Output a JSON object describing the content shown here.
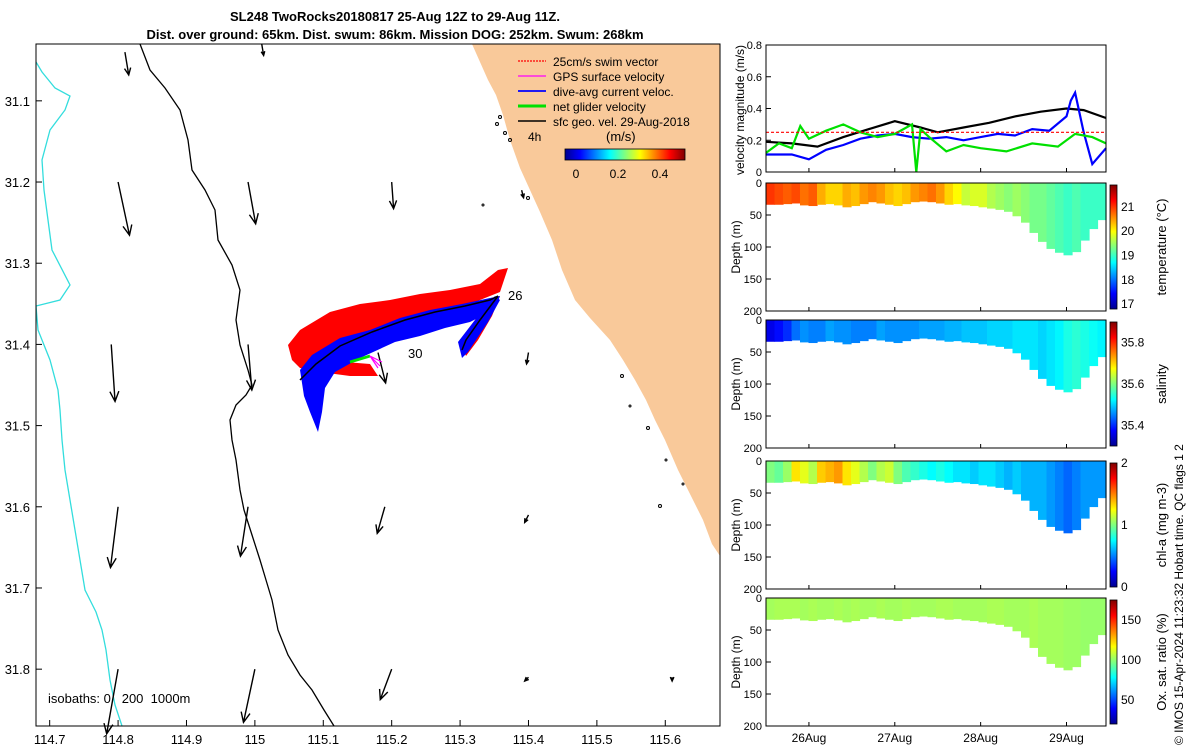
{
  "header": {
    "title_line1": "SL248 TwoRocks20180817 25-Aug 12Z to 29-Aug 11Z.",
    "title_line2": "Dist. over ground: 65km. Dist. swum: 86km. Mission DOG: 252km. Swum: 268km"
  },
  "credit": "© IMOS 15-Apr-2024 11:23:32 Hobart time. QC flags 1  2",
  "colors": {
    "land": "#f9c99a",
    "swim_vector": "#ff0000",
    "gps_velocity": "#ff00ff",
    "current": "#0000ff",
    "net_glider": "#00e000",
    "sfc_geo": "#000000",
    "isobath_0": "#000000",
    "isobath_1000": "#33dddd"
  },
  "icons": [
    "north-arrow-icon"
  ],
  "chart_data": [
    {
      "type": "map",
      "x_ticks": [
        "114.7",
        "114.8",
        "114.9",
        "115",
        "115.1",
        "115.2",
        "115.3",
        "115.4",
        "115.5",
        "115.6"
      ],
      "x_tick_values": [
        114.7,
        114.8,
        114.9,
        115.0,
        115.1,
        115.2,
        115.3,
        115.4,
        115.5,
        115.6
      ],
      "y_ticks": [
        "31.1",
        "31.2",
        "31.3",
        "31.4",
        "31.5",
        "31.6",
        "31.7",
        "31.8"
      ],
      "y_tick_values": [
        -31.1,
        -31.2,
        -31.3,
        -31.4,
        -31.5,
        -31.6,
        -31.7,
        -31.8
      ],
      "xlim": [
        114.68,
        115.68
      ],
      "ylim": [
        -31.03,
        -31.87
      ],
      "legend": {
        "placement": "top-right",
        "entries": [
          "25cm/s swim vector",
          "GPS surface velocity",
          "dive-avg current veloc.",
          "net glider velocity",
          "sfc geo. vel. 29-Aug-2018"
        ],
        "time_marker": "4h",
        "colorbar_label": "(m/s)",
        "colorbar_ticks": [
          "0",
          "0.2",
          "0.4"
        ],
        "colorbar_values": [
          0,
          0.2,
          0.4
        ]
      },
      "track_labels": [
        {
          "text": "26",
          "lon": 115.365,
          "lat": -31.34
        },
        {
          "text": "30",
          "lon": 115.225,
          "lat": -31.42
        }
      ],
      "isobath_text": "isobaths: 0   200  1000m",
      "geostrophic_vectors": [
        {
          "lon": 114.81,
          "lat": -31.04,
          "u": 0.01,
          "v": -0.06
        },
        {
          "lon": 115.01,
          "lat": -31.03,
          "u": 0.005,
          "v": -0.03
        },
        {
          "lon": 114.8,
          "lat": -31.2,
          "u": 0.03,
          "v": -0.14
        },
        {
          "lon": 114.99,
          "lat": -31.2,
          "u": 0.02,
          "v": -0.11
        },
        {
          "lon": 115.2,
          "lat": -31.2,
          "u": 0.005,
          "v": -0.07
        },
        {
          "lon": 115.39,
          "lat": -31.21,
          "u": 0.005,
          "v": -0.02
        },
        {
          "lon": 114.79,
          "lat": -31.4,
          "u": 0.01,
          "v": -0.15
        },
        {
          "lon": 114.99,
          "lat": -31.4,
          "u": 0.01,
          "v": -0.12
        },
        {
          "lon": 115.18,
          "lat": -31.41,
          "u": 0.02,
          "v": -0.08
        },
        {
          "lon": 115.4,
          "lat": -31.41,
          "u": -0.005,
          "v": -0.03
        },
        {
          "lon": 114.8,
          "lat": -31.6,
          "u": -0.02,
          "v": -0.16
        },
        {
          "lon": 114.99,
          "lat": -31.6,
          "u": -0.02,
          "v": -0.13
        },
        {
          "lon": 115.19,
          "lat": -31.6,
          "u": -0.02,
          "v": -0.07
        },
        {
          "lon": 115.4,
          "lat": -31.61,
          "u": -0.01,
          "v": -0.02
        },
        {
          "lon": 114.8,
          "lat": -31.8,
          "u": -0.03,
          "v": -0.17
        },
        {
          "lon": 115.0,
          "lat": -31.8,
          "u": -0.03,
          "v": -0.14
        },
        {
          "lon": 115.2,
          "lat": -31.8,
          "u": -0.03,
          "v": -0.08
        },
        {
          "lon": 115.4,
          "lat": -31.81,
          "u": -0.01,
          "v": -0.01
        },
        {
          "lon": 115.61,
          "lat": -31.81,
          "u": 0.0,
          "v": -0.01
        }
      ]
    },
    {
      "type": "line",
      "ylabel": "velocity magnitude (m/s)",
      "ylim": [
        0,
        0.8
      ],
      "yticks": [
        0,
        0.2,
        0.4,
        0.6,
        0.8
      ],
      "x_range_days": [
        25.5,
        29.46
      ],
      "series": [
        {
          "color": "#000000",
          "x": [
            25.5,
            25.8,
            26.1,
            26.4,
            26.7,
            27.0,
            27.3,
            27.5,
            27.8,
            28.1,
            28.4,
            28.7,
            29.0,
            29.2,
            29.46
          ],
          "values": [
            0.19,
            0.18,
            0.16,
            0.22,
            0.27,
            0.32,
            0.28,
            0.25,
            0.28,
            0.31,
            0.35,
            0.38,
            0.4,
            0.39,
            0.34
          ]
        },
        {
          "color": "#0000ff",
          "x": [
            25.5,
            25.8,
            26.0,
            26.2,
            26.4,
            26.6,
            26.8,
            27.0,
            27.2,
            27.4,
            27.6,
            27.8,
            28.0,
            28.2,
            28.4,
            28.6,
            28.8,
            29.0,
            29.05,
            29.1,
            29.2,
            29.3,
            29.46
          ],
          "values": [
            0.11,
            0.11,
            0.08,
            0.14,
            0.17,
            0.21,
            0.23,
            0.24,
            0.22,
            0.21,
            0.22,
            0.2,
            0.22,
            0.24,
            0.23,
            0.27,
            0.26,
            0.35,
            0.45,
            0.5,
            0.25,
            0.05,
            0.15
          ]
        },
        {
          "color": "#00e000",
          "x": [
            25.5,
            25.65,
            25.8,
            25.9,
            26.0,
            26.2,
            26.4,
            26.6,
            26.8,
            27.0,
            27.2,
            27.25,
            27.3,
            27.4,
            27.6,
            27.8,
            28.0,
            28.3,
            28.6,
            28.9,
            29.1,
            29.3,
            29.46
          ],
          "values": [
            0.12,
            0.18,
            0.15,
            0.29,
            0.21,
            0.26,
            0.3,
            0.25,
            0.22,
            0.24,
            0.3,
            0.0,
            0.27,
            0.22,
            0.13,
            0.17,
            0.15,
            0.13,
            0.18,
            0.16,
            0.24,
            0.22,
            0.18
          ]
        },
        {
          "color": "#ff0000",
          "x": [
            25.5,
            29.46
          ],
          "values": [
            0.25,
            0.25
          ]
        }
      ]
    },
    {
      "type": "heatmap",
      "variable": "temperature",
      "ylabel": "Depth (m)",
      "ylim": [
        0,
        200
      ],
      "yticks": [
        0,
        50,
        100,
        150,
        200
      ],
      "colorbar_label": "temperature (°C)",
      "clim": [
        16.8,
        21.9
      ],
      "colorbar_ticks": [
        17,
        18,
        19,
        20,
        21
      ],
      "values": [
        21.0,
        20.9,
        20.8,
        20.9,
        20.7,
        20.8,
        20.4,
        20.2,
        20.2,
        20.4,
        20.3,
        20.5,
        20.6,
        20.5,
        20.3,
        20.2,
        20.3,
        20.5,
        20.6,
        20.7,
        20.5,
        20.2,
        20.0,
        19.7,
        19.8,
        19.8,
        19.6,
        19.5,
        19.4,
        19.5,
        19.4,
        19.3,
        19.3,
        19.2,
        19.1,
        19.0,
        19.1,
        19.0,
        19.0,
        19.0
      ]
    },
    {
      "type": "heatmap",
      "variable": "salinity",
      "ylabel": "Depth (m)",
      "ylim": [
        0,
        200
      ],
      "yticks": [
        0,
        50,
        100,
        150,
        200
      ],
      "colorbar_label": "salinity",
      "clim": [
        35.3,
        35.9
      ],
      "colorbar_ticks": [
        35.4,
        35.6,
        35.8
      ],
      "values": [
        35.36,
        35.38,
        35.4,
        35.44,
        35.46,
        35.45,
        35.45,
        35.47,
        35.46,
        35.46,
        35.45,
        35.45,
        35.45,
        35.47,
        35.46,
        35.46,
        35.46,
        35.46,
        35.47,
        35.47,
        35.47,
        35.48,
        35.48,
        35.49,
        35.49,
        35.49,
        35.5,
        35.5,
        35.5,
        35.51,
        35.51,
        35.51,
        35.5,
        35.51,
        35.52,
        35.54,
        35.55,
        35.54,
        35.53,
        35.52
      ]
    },
    {
      "type": "heatmap",
      "variable": "chl-a",
      "ylabel": "Depth (m)",
      "ylim": [
        0,
        200
      ],
      "yticks": [
        0,
        50,
        100,
        150,
        200
      ],
      "colorbar_label": "chl-a (mg m-3)",
      "clim": [
        0,
        2
      ],
      "colorbar_ticks": [
        0,
        1,
        2
      ],
      "values": [
        1.0,
        0.95,
        1.05,
        1.3,
        1.2,
        1.1,
        1.35,
        1.4,
        1.45,
        1.3,
        1.2,
        1.1,
        1.0,
        1.1,
        1.15,
        1.0,
        0.9,
        0.85,
        0.8,
        0.75,
        0.8,
        0.75,
        0.7,
        0.7,
        0.65,
        0.7,
        0.7,
        0.65,
        0.6,
        0.65,
        0.6,
        0.6,
        0.6,
        0.55,
        0.5,
        0.45,
        0.5,
        0.55,
        0.55,
        0.55
      ]
    },
    {
      "type": "heatmap",
      "variable": "oxygen",
      "ylabel": "Depth (m)",
      "ylim": [
        0,
        200
      ],
      "yticks": [
        0,
        50,
        100,
        150,
        200
      ],
      "colorbar_label": "Ox. sat. ratio (%)",
      "clim": [
        20,
        175
      ],
      "colorbar_ticks": [
        50,
        100,
        150
      ],
      "values": [
        103,
        104,
        104,
        104,
        103,
        104,
        103,
        103,
        104,
        103,
        104,
        103,
        103,
        104,
        103,
        103,
        104,
        103,
        103,
        103,
        104,
        104,
        103,
        103,
        103,
        103,
        104,
        104,
        103,
        103,
        103,
        104,
        103,
        103,
        103,
        102,
        102,
        101,
        101,
        101
      ]
    },
    {
      "type": "axis",
      "x_ticks": [
        "26Aug",
        "27Aug",
        "28Aug",
        "29Aug"
      ],
      "x_tick_values": [
        26,
        27,
        28,
        29
      ]
    }
  ]
}
